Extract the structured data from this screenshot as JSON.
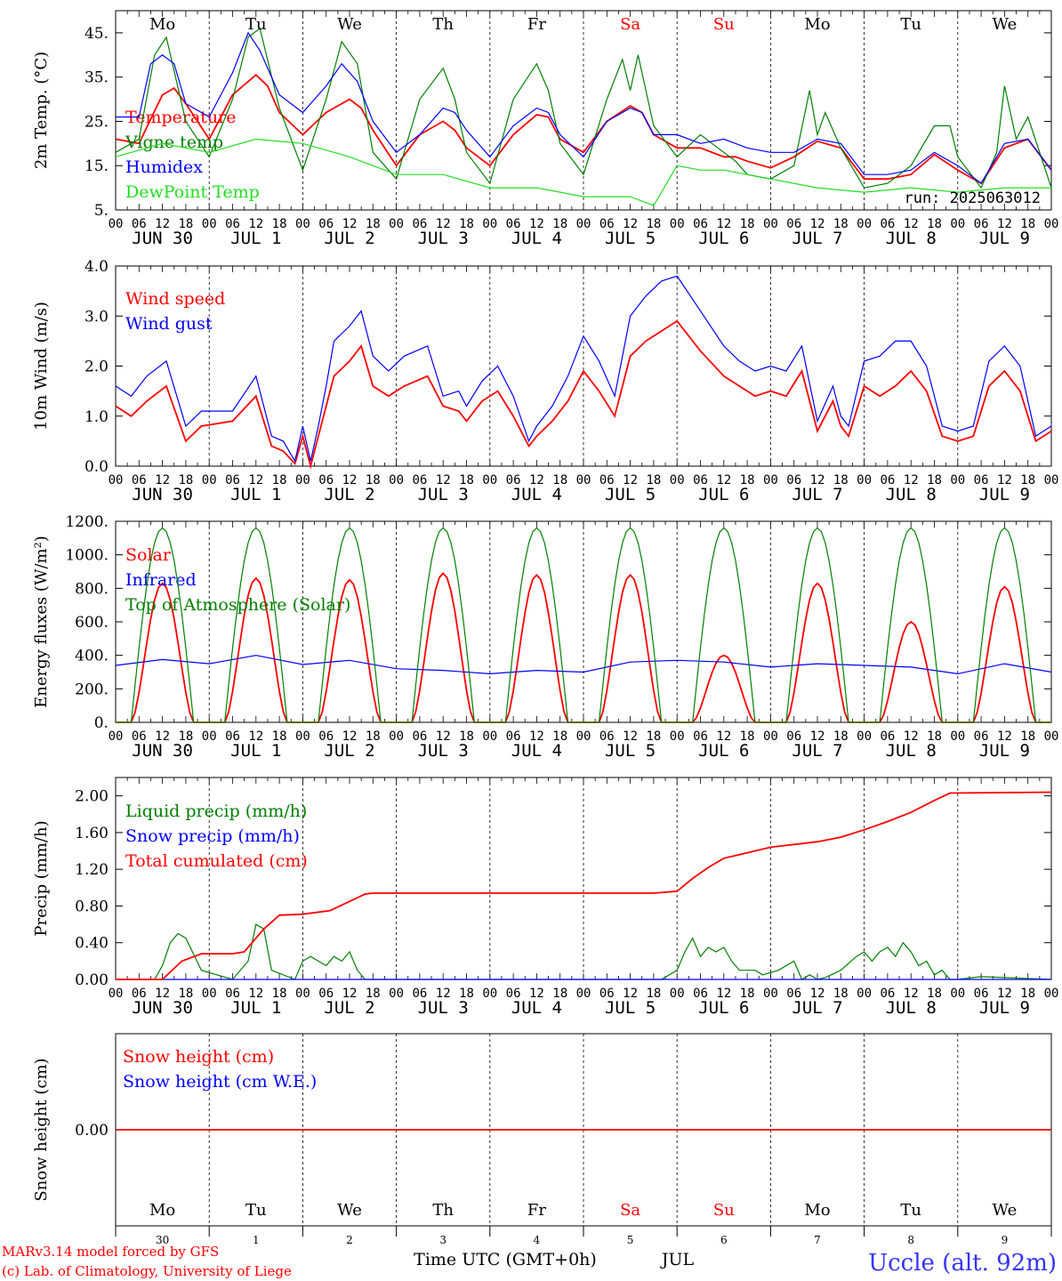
{
  "days": [
    "Mo",
    "Tu",
    "We",
    "Th",
    "Fr",
    "Sa",
    "Su",
    "Mo",
    "Tu",
    "We"
  ],
  "weekend_days": [
    5,
    6
  ],
  "date_labels": [
    "JUN 30",
    "JUL  1",
    "JUL  2",
    "JUL  3",
    "JUL  4",
    "JUL  5",
    "JUL  6",
    "JUL  7",
    "JUL  8",
    "JUL  9"
  ],
  "hour_labels": [
    "00",
    "06",
    "12",
    "18"
  ],
  "final_hour_label": "00",
  "run_label": "run: 2025063012",
  "footer": {
    "model": "MARv3.14 model forced by GFS",
    "lab": "(c) Lab. of Climatology, University of Liege",
    "xlabel": "Time UTC (GMT+0h)",
    "month": "JUL",
    "station": "Uccle (alt. 92m)",
    "day_numbers": [
      "30",
      "1",
      "2",
      "3",
      "4",
      "5",
      "6",
      "7",
      "8",
      "9"
    ]
  },
  "colors": {
    "red": "#ff0000",
    "green": "#008000",
    "blue": "#0000ff",
    "lime": "#22dd22",
    "weekend": "#ff0000",
    "station": "#3333ff"
  },
  "chart_data": [
    {
      "type": "line",
      "ylabel": "2m Temp. (°C)",
      "ylim": [
        5,
        50
      ],
      "yticks": [
        5,
        15,
        25,
        35,
        45
      ],
      "ytick_labels": [
        "5.",
        "15.",
        "25.",
        "35.",
        "45."
      ],
      "x_unit": "hours since 2025-06-30 00 UTC",
      "series": [
        {
          "name": "Temperature",
          "color": "red",
          "x": [
            0,
            6,
            12,
            15,
            18,
            24,
            30,
            36,
            39,
            42,
            48,
            54,
            60,
            63,
            66,
            72,
            78,
            84,
            87,
            90,
            96,
            102,
            108,
            111,
            114,
            120,
            126,
            132,
            135,
            138,
            144,
            150,
            156,
            159,
            162,
            168,
            174,
            180,
            186,
            192,
            198,
            204,
            210,
            216,
            222,
            228,
            234,
            240
          ],
          "values": [
            21,
            20,
            31,
            32.5,
            29,
            21,
            31,
            35.5,
            33,
            27,
            22,
            27,
            30,
            28,
            23,
            15,
            22,
            25,
            23,
            19,
            15,
            22,
            26.5,
            26,
            21,
            18,
            25,
            28.5,
            27,
            22,
            19,
            19,
            17,
            17,
            16,
            14.5,
            17,
            20.5,
            19,
            12,
            12,
            13,
            17.5,
            14,
            11,
            19,
            21,
            14
          ]
        },
        {
          "name": "Vigne temp",
          "color": "green",
          "x": [
            0,
            6,
            10,
            13,
            18,
            24,
            30,
            34,
            37,
            42,
            48,
            54,
            58,
            62,
            66,
            72,
            78,
            84,
            87,
            90,
            96,
            102,
            108,
            111,
            114,
            120,
            126,
            130,
            132,
            134,
            138,
            144,
            150,
            156,
            159,
            162,
            168,
            174,
            178,
            180,
            182,
            186,
            192,
            198,
            204,
            210,
            214,
            216,
            222,
            226,
            228,
            231,
            234,
            240
          ],
          "values": [
            18,
            21,
            40,
            44,
            25,
            17,
            30,
            44,
            46,
            28,
            14,
            30,
            43,
            38,
            18,
            12,
            30,
            37,
            30,
            18,
            11,
            30,
            38,
            32,
            20,
            13,
            30,
            39,
            32,
            40,
            24,
            17,
            22,
            18,
            16,
            13,
            12,
            15,
            32,
            22,
            27,
            19,
            10,
            11,
            15,
            24,
            24,
            17,
            10,
            18,
            33,
            21,
            26,
            10
          ]
        },
        {
          "name": "Humidex",
          "color": "blue",
          "x": [
            0,
            6,
            9,
            12,
            15,
            18,
            24,
            30,
            34,
            37,
            42,
            48,
            54,
            58,
            62,
            66,
            72,
            78,
            84,
            87,
            90,
            96,
            102,
            108,
            111,
            114,
            120,
            126,
            132,
            135,
            138,
            144,
            150,
            156,
            159,
            162,
            168,
            174,
            180,
            186,
            192,
            198,
            204,
            210,
            216,
            222,
            228,
            234,
            240
          ],
          "values": [
            26,
            26,
            38,
            40,
            38,
            29,
            26,
            36,
            45,
            41,
            31,
            27,
            33,
            38,
            34,
            25,
            18,
            22,
            28,
            27,
            23,
            17,
            24,
            28,
            27,
            22,
            17,
            25,
            28,
            27,
            22,
            22,
            20,
            21,
            20,
            19,
            18,
            18,
            21,
            20,
            13,
            13,
            14,
            18,
            15,
            11,
            20,
            21,
            14
          ]
        },
        {
          "name": "DewPoint Temp",
          "color": "lime",
          "x": [
            0,
            12,
            24,
            36,
            48,
            60,
            72,
            84,
            96,
            108,
            120,
            132,
            138,
            144,
            150,
            156,
            168,
            180,
            192,
            204,
            216,
            228,
            240
          ],
          "values": [
            17,
            20,
            18,
            21,
            20,
            17,
            13,
            13,
            10,
            10,
            8,
            8,
            6,
            15,
            14,
            14,
            12,
            10,
            9,
            10,
            9,
            10,
            10
          ]
        }
      ]
    },
    {
      "type": "line",
      "ylabel": "10m Wind (m/s)",
      "ylim": [
        0,
        4
      ],
      "yticks": [
        0,
        1,
        2,
        3,
        4
      ],
      "ytick_labels": [
        "0.0",
        "1.0",
        "2.0",
        "3.0",
        "4.0"
      ],
      "x_unit": "hours since 2025-06-30 00 UTC",
      "series": [
        {
          "name": "Wind speed",
          "color": "red",
          "x": [
            0,
            4,
            8,
            13,
            18,
            22,
            30,
            36,
            40,
            43,
            46,
            48,
            50,
            52,
            54,
            56,
            60,
            63,
            66,
            70,
            74,
            80,
            84,
            88,
            90,
            94,
            98,
            102,
            106,
            108,
            112,
            116,
            120,
            124,
            128,
            132,
            136,
            140,
            144,
            150,
            156,
            160,
            164,
            168,
            172,
            176,
            180,
            184,
            186,
            188,
            192,
            196,
            200,
            204,
            208,
            212,
            216,
            220,
            224,
            228,
            232,
            236,
            240
          ],
          "values": [
            1.2,
            1.0,
            1.3,
            1.6,
            0.5,
            0.8,
            0.9,
            1.4,
            0.4,
            0.3,
            0.05,
            0.6,
            0.0,
            0.6,
            1.2,
            1.8,
            2.1,
            2.4,
            1.6,
            1.4,
            1.6,
            1.8,
            1.2,
            1.1,
            0.9,
            1.3,
            1.5,
            1.0,
            0.4,
            0.6,
            0.9,
            1.3,
            1.9,
            1.5,
            1.0,
            2.2,
            2.5,
            2.7,
            2.9,
            2.3,
            1.8,
            1.6,
            1.4,
            1.5,
            1.4,
            1.9,
            0.7,
            1.3,
            0.8,
            0.6,
            1.6,
            1.4,
            1.6,
            1.9,
            1.5,
            0.6,
            0.5,
            0.6,
            1.6,
            1.9,
            1.5,
            0.5,
            0.7
          ]
        },
        {
          "name": "Wind gust",
          "color": "blue",
          "x": [
            0,
            4,
            8,
            13,
            18,
            22,
            30,
            36,
            40,
            43,
            46,
            48,
            50,
            52,
            54,
            56,
            60,
            63,
            66,
            70,
            74,
            80,
            84,
            88,
            90,
            94,
            98,
            102,
            106,
            108,
            112,
            116,
            120,
            124,
            128,
            132,
            136,
            140,
            144,
            150,
            156,
            160,
            164,
            168,
            172,
            176,
            180,
            184,
            186,
            188,
            192,
            196,
            200,
            204,
            208,
            212,
            216,
            220,
            224,
            228,
            232,
            236,
            240
          ],
          "values": [
            1.6,
            1.4,
            1.8,
            2.1,
            0.8,
            1.1,
            1.1,
            1.8,
            0.6,
            0.5,
            0.1,
            0.8,
            0.1,
            0.8,
            1.6,
            2.5,
            2.8,
            3.1,
            2.2,
            1.9,
            2.2,
            2.4,
            1.4,
            1.5,
            1.2,
            1.7,
            2.0,
            1.4,
            0.5,
            0.8,
            1.2,
            1.8,
            2.6,
            2.1,
            1.4,
            3.0,
            3.4,
            3.7,
            3.8,
            3.1,
            2.4,
            2.1,
            1.9,
            2.0,
            1.9,
            2.4,
            0.9,
            1.6,
            1.0,
            0.8,
            2.1,
            2.2,
            2.5,
            2.5,
            2.0,
            0.8,
            0.7,
            0.8,
            2.1,
            2.4,
            2.0,
            0.6,
            0.8
          ]
        }
      ]
    },
    {
      "type": "line",
      "ylabel": "Energy fluxes (W/m²)",
      "ylim": [
        0,
        1200
      ],
      "yticks": [
        0,
        200,
        400,
        600,
        800,
        1000,
        1200
      ],
      "ytick_labels": [
        "0.",
        "200.",
        "400.",
        "600.",
        "800.",
        "1000.",
        "1200."
      ],
      "x_unit": "hours since 2025-06-30 00 UTC",
      "daily_solar_peak": [
        830,
        860,
        850,
        890,
        880,
        880,
        400,
        830,
        600,
        810
      ],
      "series": [
        {
          "name": "Solar",
          "color": "red",
          "x": [],
          "values": []
        },
        {
          "name": "Infrared",
          "color": "blue",
          "x": [
            0,
            12,
            24,
            36,
            48,
            60,
            72,
            84,
            96,
            108,
            120,
            132,
            144,
            156,
            168,
            180,
            192,
            204,
            216,
            228,
            240
          ],
          "values": [
            340,
            375,
            350,
            400,
            345,
            370,
            320,
            310,
            290,
            310,
            300,
            360,
            370,
            360,
            330,
            350,
            340,
            330,
            290,
            350,
            300
          ]
        },
        {
          "name": "Top of Atmosphere (Solar)",
          "color": "green",
          "x": [],
          "values": []
        }
      ]
    },
    {
      "type": "line",
      "ylabel": "Precip (mm/h)",
      "ylim": [
        0,
        2.2
      ],
      "yticks": [
        0,
        0.4,
        0.8,
        1.2,
        1.6,
        2.0
      ],
      "ytick_labels": [
        "0.00",
        "0.40",
        "0.80",
        "1.20",
        "1.60",
        "2.00"
      ],
      "x_unit": "hours since 2025-06-30 00 UTC",
      "series": [
        {
          "name": "Liquid precip (mm/h)",
          "color": "green",
          "x": [
            0,
            10,
            12,
            14,
            16,
            18,
            22,
            30,
            34,
            36,
            38,
            40,
            46,
            48,
            50,
            52,
            54,
            56,
            58,
            60,
            62,
            64,
            66,
            68,
            70,
            72,
            140,
            144,
            146,
            148,
            150,
            152,
            154,
            156,
            158,
            160,
            162,
            164,
            166,
            170,
            174,
            176,
            178,
            180,
            182,
            186,
            190,
            192,
            194,
            196,
            198,
            200,
            202,
            204,
            206,
            208,
            210,
            212,
            214,
            216,
            222,
            240
          ],
          "values": [
            0,
            0,
            0.15,
            0.4,
            0.5,
            0.45,
            0.1,
            0,
            0.2,
            0.6,
            0.55,
            0.1,
            0,
            0.2,
            0.25,
            0.2,
            0.15,
            0.25,
            0.2,
            0.3,
            0.1,
            0,
            0,
            0,
            0,
            0,
            0,
            0.1,
            0.3,
            0.45,
            0.25,
            0.35,
            0.3,
            0.35,
            0.2,
            0.1,
            0.1,
            0.1,
            0.05,
            0.1,
            0.2,
            0,
            0.05,
            0,
            0.02,
            0.1,
            0.25,
            0.3,
            0.2,
            0.3,
            0.35,
            0.25,
            0.4,
            0.3,
            0.15,
            0.2,
            0.05,
            0.1,
            0,
            0,
            0.03,
            0
          ]
        },
        {
          "name": "Snow precip (mm/h)",
          "color": "blue",
          "x": [
            0,
            240
          ],
          "values": [
            0,
            0
          ]
        },
        {
          "name": "Total cumulated (cm)",
          "color": "red",
          "x": [
            0,
            12,
            17,
            22,
            30,
            33,
            38,
            42,
            48,
            55,
            60,
            64,
            66,
            138,
            144,
            148,
            152,
            156,
            160,
            168,
            174,
            180,
            186,
            192,
            198,
            204,
            210,
            214,
            240
          ],
          "values": [
            0,
            0,
            0.2,
            0.28,
            0.28,
            0.3,
            0.55,
            0.7,
            0.71,
            0.75,
            0.85,
            0.93,
            0.94,
            0.94,
            0.96,
            1.1,
            1.22,
            1.32,
            1.36,
            1.44,
            1.47,
            1.5,
            1.55,
            1.63,
            1.72,
            1.82,
            1.95,
            2.03,
            2.04
          ]
        }
      ]
    },
    {
      "type": "line",
      "ylabel": "Snow height (cm)",
      "ylim": [
        -1,
        1
      ],
      "yticks": [
        0
      ],
      "ytick_labels": [
        "0.00"
      ],
      "x_unit": "hours since 2025-06-30 00 UTC",
      "series": [
        {
          "name": "Snow height (cm)",
          "color": "red",
          "x": [
            0,
            240
          ],
          "values": [
            0,
            0
          ]
        },
        {
          "name": "Snow height (cm W.E.)",
          "color": "blue",
          "x": [],
          "values": []
        }
      ]
    }
  ]
}
